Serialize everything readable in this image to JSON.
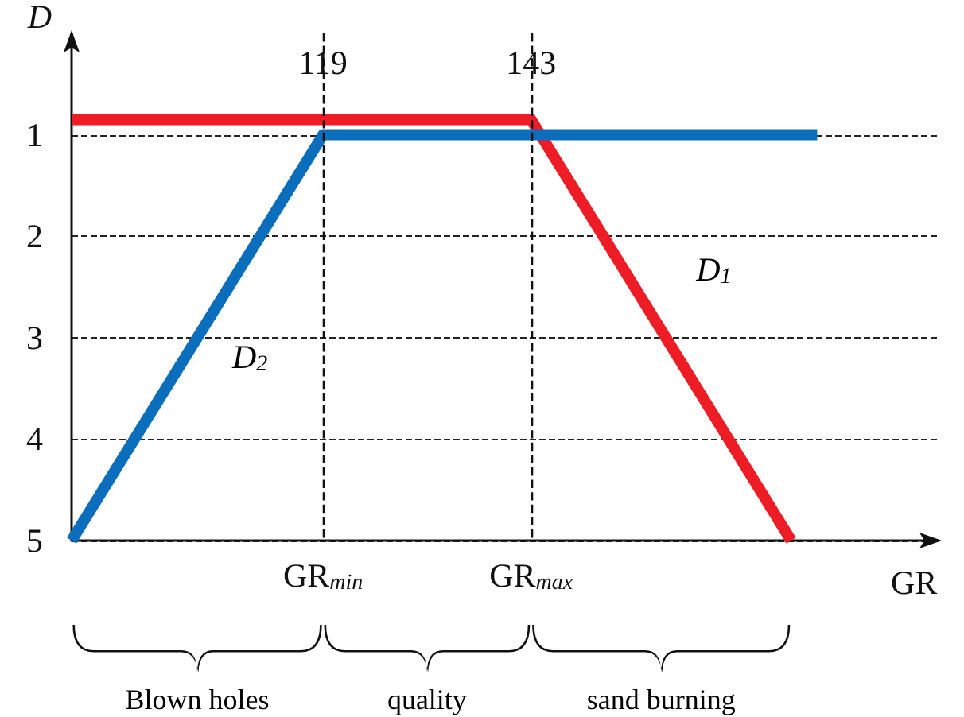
{
  "chart_data": {
    "type": "line",
    "xlabel": "GR",
    "ylabel": "D",
    "series": [
      {
        "name": "D$_{1}$",
        "color": "#ee1c25",
        "x": [
          90,
          143,
          173
        ],
        "values": [
          0.85,
          0.85,
          5
        ]
      },
      {
        "name": "D$_{2}$",
        "color": "#0a6ebd",
        "x": [
          90,
          119,
          176
        ],
        "values": [
          5,
          1,
          1
        ]
      }
    ],
    "xlim": [
      90,
      190
    ],
    "xticks": [
      119,
      143
    ],
    "ylim": [
      5,
      0
    ],
    "yticks": [
      5,
      4,
      3,
      2,
      1
    ],
    "grid": "y",
    "marker": "none",
    "line_style": "solid",
    "legend": false,
    "ref_lines": [
      {
        "axis": "x",
        "value": 119,
        "line_style": "dashed",
        "label": "GR$_{min}$"
      },
      {
        "axis": "x",
        "value": 143,
        "line_style": "dashed",
        "label": "GR$_{max}$"
      }
    ],
    "annotations": [
      "Blown holes",
      "quality",
      "sand burning"
    ]
  }
}
